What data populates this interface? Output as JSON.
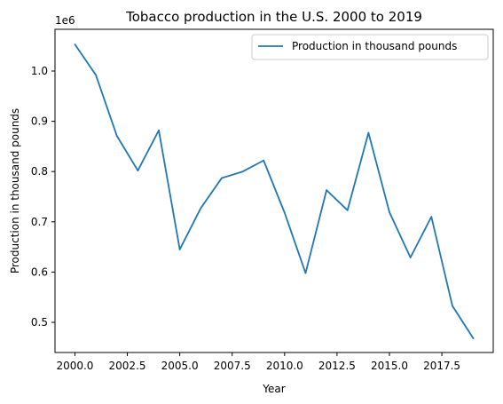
{
  "chart_data": {
    "type": "line",
    "title": "Tobacco production in the U.S. 2000 to 2019",
    "xlabel": "Year",
    "ylabel": "Production in thousand pounds",
    "y_offset_text": "1e6",
    "y_scale": 1000000,
    "xlim": [
      1999.05,
      2019.95
    ],
    "ylim": [
      440000,
      1083000
    ],
    "x_ticks": [
      2000,
      2002.5,
      2005,
      2007.5,
      2010,
      2012.5,
      2015,
      2017.5
    ],
    "x_tick_labels": [
      "2000.0",
      "2002.5",
      "2005.0",
      "2007.5",
      "2010.0",
      "2012.5",
      "2015.0",
      "2017.5"
    ],
    "y_ticks": [
      500000,
      600000,
      700000,
      800000,
      900000,
      1000000
    ],
    "y_tick_labels": [
      "0.5",
      "0.6",
      "0.7",
      "0.8",
      "0.9",
      "1.0"
    ],
    "grid": false,
    "legend_position": "top-right",
    "series": [
      {
        "name": "Production in thousand pounds",
        "color": "#1f77b4",
        "x": [
          2000,
          2001,
          2002,
          2003,
          2004,
          2005,
          2006,
          2007,
          2008,
          2009,
          2010,
          2011,
          2012,
          2013,
          2014,
          2015,
          2016,
          2017,
          2018,
          2019
        ],
        "y": [
          1053000,
          992000,
          871000,
          802000,
          882000,
          645000,
          727000,
          787000,
          800000,
          822000,
          718000,
          598000,
          763000,
          723000,
          877000,
          719000,
          629000,
          710000,
          533000,
          468000
        ]
      }
    ]
  }
}
